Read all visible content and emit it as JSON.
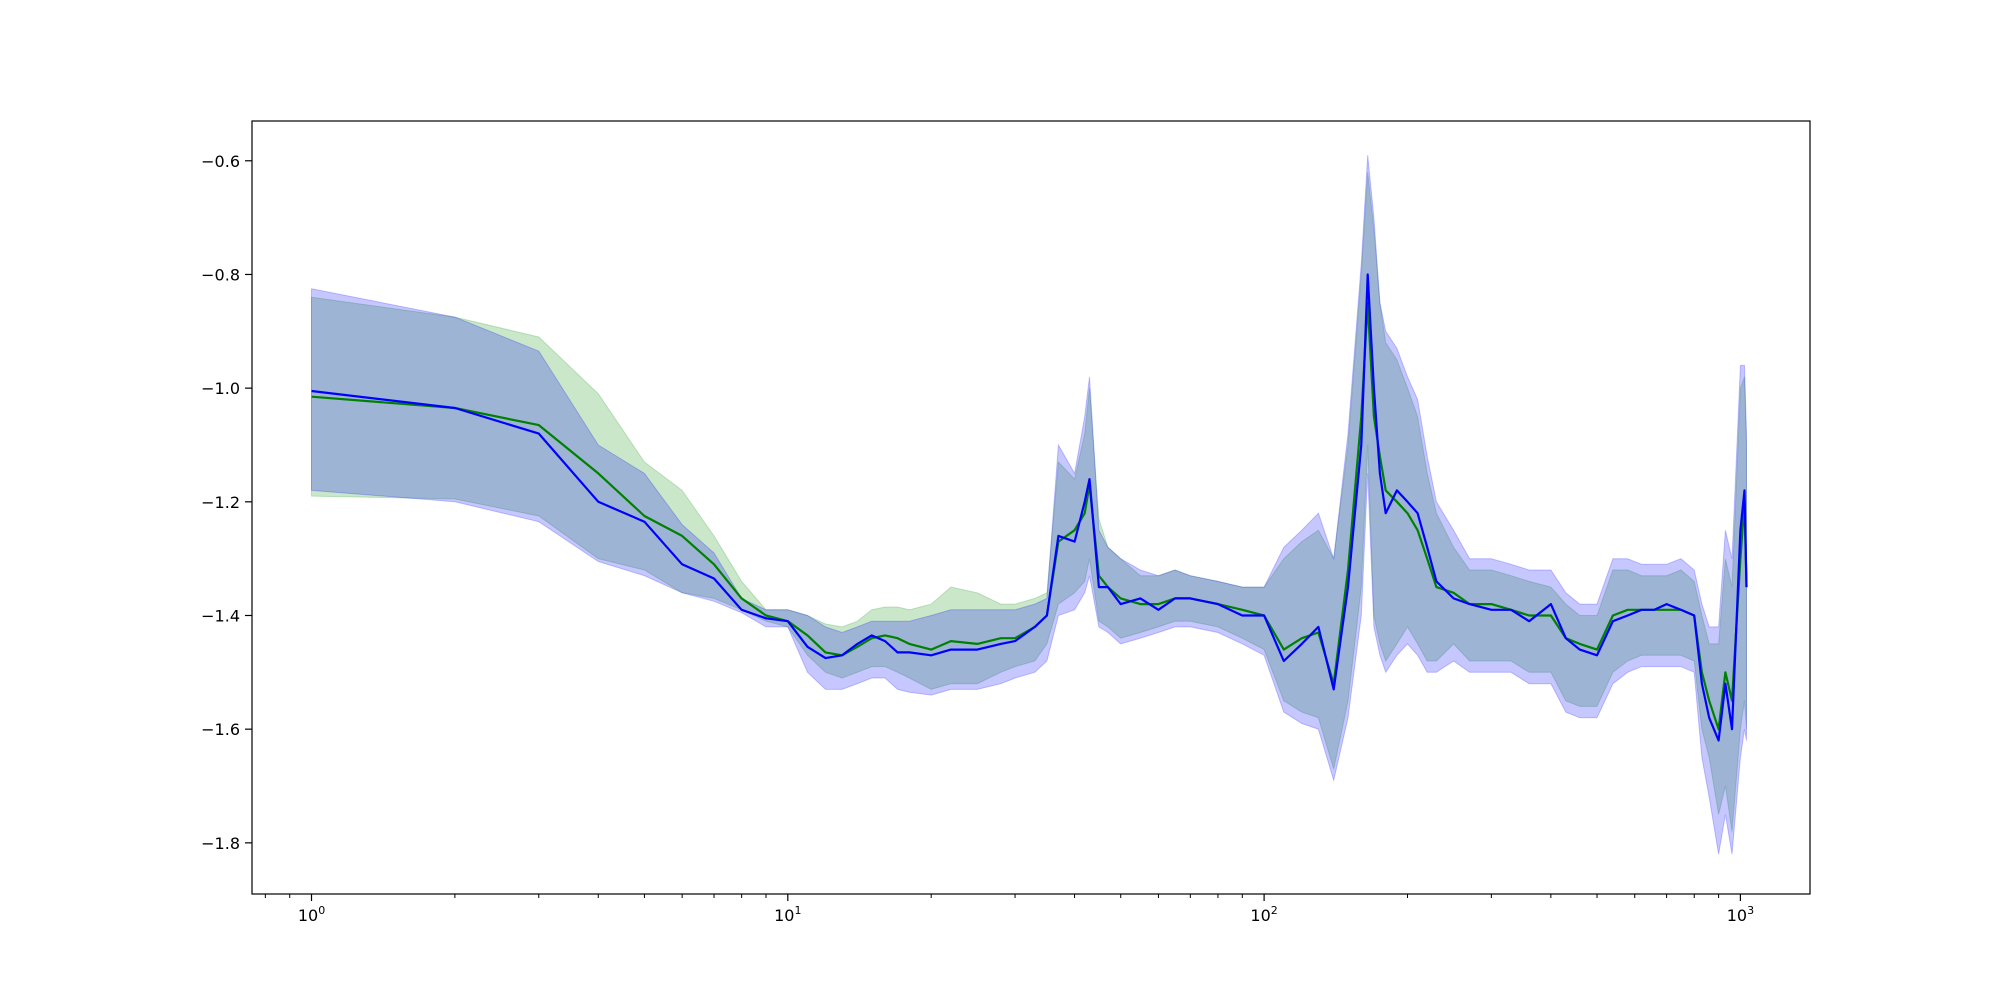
{
  "chart_data": {
    "type": "line",
    "title": "",
    "xlabel": "",
    "ylabel": "",
    "xscale": "log",
    "xlim": [
      0.75,
      1400
    ],
    "ylim": [
      -1.89,
      -0.53
    ],
    "x_ticks": [
      {
        "value": 1,
        "base": "10",
        "exp": "0"
      },
      {
        "value": 10,
        "base": "10",
        "exp": "1"
      },
      {
        "value": 100,
        "base": "10",
        "exp": "2"
      },
      {
        "value": 1000,
        "base": "10",
        "exp": "3"
      }
    ],
    "y_ticks": [
      {
        "value": -0.6,
        "label": "−0.6"
      },
      {
        "value": -0.8,
        "label": "−0.8"
      },
      {
        "value": -1.0,
        "label": "−1.0"
      },
      {
        "value": -1.2,
        "label": "−1.2"
      },
      {
        "value": -1.4,
        "label": "−1.4"
      },
      {
        "value": -1.6,
        "label": "−1.6"
      },
      {
        "value": -1.8,
        "label": "−1.8"
      }
    ],
    "grid": false,
    "legend": "none",
    "series": [
      {
        "color": "#008000",
        "band_color": "#2ca02c",
        "band_opacity": 0.25,
        "x": [
          1,
          2,
          3,
          4,
          5,
          6,
          7,
          8,
          9,
          10,
          11,
          12,
          13,
          14,
          15,
          16,
          17,
          18,
          20,
          22,
          25,
          28,
          30,
          33,
          35,
          37,
          40,
          42,
          43,
          45,
          47,
          50,
          55,
          60,
          65,
          70,
          80,
          90,
          100,
          110,
          120,
          130,
          140,
          150,
          160,
          165,
          170,
          175,
          180,
          190,
          200,
          210,
          220,
          230,
          250,
          270,
          300,
          330,
          360,
          400,
          430,
          460,
          500,
          540,
          580,
          620,
          660,
          700,
          750,
          800,
          830,
          860,
          900,
          930,
          960,
          1000,
          1020,
          1030
        ],
        "values": [
          -1.015,
          -1.035,
          -1.065,
          -1.15,
          -1.225,
          -1.26,
          -1.31,
          -1.37,
          -1.4,
          -1.41,
          -1.435,
          -1.465,
          -1.47,
          -1.455,
          -1.44,
          -1.435,
          -1.44,
          -1.45,
          -1.46,
          -1.445,
          -1.45,
          -1.44,
          -1.44,
          -1.42,
          -1.4,
          -1.27,
          -1.25,
          -1.22,
          -1.17,
          -1.33,
          -1.35,
          -1.37,
          -1.38,
          -1.38,
          -1.37,
          -1.37,
          -1.38,
          -1.39,
          -1.4,
          -1.46,
          -1.44,
          -1.43,
          -1.52,
          -1.32,
          -1.05,
          -0.85,
          -1.05,
          -1.12,
          -1.18,
          -1.2,
          -1.22,
          -1.25,
          -1.3,
          -1.35,
          -1.36,
          -1.38,
          -1.38,
          -1.39,
          -1.4,
          -1.4,
          -1.44,
          -1.45,
          -1.46,
          -1.4,
          -1.39,
          -1.39,
          -1.39,
          -1.39,
          -1.39,
          -1.4,
          -1.5,
          -1.55,
          -1.6,
          -1.5,
          -1.55,
          -1.3,
          -1.2,
          -1.35
        ],
        "lower": [
          -1.19,
          -1.195,
          -1.225,
          -1.3,
          -1.32,
          -1.36,
          -1.37,
          -1.39,
          -1.41,
          -1.42,
          -1.47,
          -1.5,
          -1.51,
          -1.5,
          -1.49,
          -1.49,
          -1.5,
          -1.51,
          -1.53,
          -1.52,
          -1.52,
          -1.5,
          -1.49,
          -1.48,
          -1.45,
          -1.38,
          -1.36,
          -1.34,
          -1.3,
          -1.41,
          -1.42,
          -1.44,
          -1.43,
          -1.42,
          -1.41,
          -1.41,
          -1.42,
          -1.44,
          -1.46,
          -1.55,
          -1.57,
          -1.58,
          -1.67,
          -1.55,
          -1.35,
          -1.1,
          -1.4,
          -1.45,
          -1.48,
          -1.45,
          -1.42,
          -1.45,
          -1.48,
          -1.48,
          -1.45,
          -1.48,
          -1.48,
          -1.48,
          -1.5,
          -1.5,
          -1.55,
          -1.56,
          -1.56,
          -1.5,
          -1.48,
          -1.47,
          -1.47,
          -1.47,
          -1.47,
          -1.48,
          -1.6,
          -1.65,
          -1.75,
          -1.7,
          -1.78,
          -1.6,
          -1.55,
          -1.6
        ],
        "upper": [
          -0.84,
          -0.875,
          -0.91,
          -1.01,
          -1.13,
          -1.18,
          -1.26,
          -1.34,
          -1.39,
          -1.39,
          -1.4,
          -1.415,
          -1.42,
          -1.41,
          -1.39,
          -1.385,
          -1.385,
          -1.39,
          -1.38,
          -1.35,
          -1.36,
          -1.38,
          -1.38,
          -1.37,
          -1.36,
          -1.13,
          -1.16,
          -1.08,
          -1.0,
          -1.23,
          -1.28,
          -1.3,
          -1.33,
          -1.33,
          -1.32,
          -1.33,
          -1.34,
          -1.35,
          -1.35,
          -1.3,
          -1.27,
          -1.25,
          -1.3,
          -1.1,
          -0.8,
          -0.62,
          -0.72,
          -0.85,
          -0.92,
          -0.95,
          -1.0,
          -1.05,
          -1.15,
          -1.22,
          -1.28,
          -1.32,
          -1.32,
          -1.33,
          -1.34,
          -1.35,
          -1.38,
          -1.4,
          -1.4,
          -1.32,
          -1.32,
          -1.33,
          -1.33,
          -1.33,
          -1.32,
          -1.34,
          -1.4,
          -1.45,
          -1.45,
          -1.3,
          -1.35,
          -1.0,
          -0.98,
          -1.1
        ]
      },
      {
        "color": "#0000ff",
        "band_color": "#0000ff",
        "band_opacity": 0.22,
        "x": [
          1,
          2,
          3,
          4,
          5,
          6,
          7,
          8,
          9,
          10,
          11,
          12,
          13,
          14,
          15,
          16,
          17,
          18,
          20,
          22,
          25,
          28,
          30,
          33,
          35,
          37,
          40,
          42,
          43,
          45,
          47,
          50,
          55,
          60,
          65,
          70,
          80,
          90,
          100,
          110,
          120,
          130,
          140,
          150,
          160,
          165,
          170,
          175,
          180,
          190,
          200,
          210,
          220,
          230,
          250,
          270,
          300,
          330,
          360,
          400,
          430,
          460,
          500,
          540,
          580,
          620,
          660,
          700,
          750,
          800,
          830,
          860,
          900,
          930,
          960,
          1000,
          1020,
          1030
        ],
        "values": [
          -1.005,
          -1.035,
          -1.08,
          -1.2,
          -1.235,
          -1.31,
          -1.335,
          -1.39,
          -1.405,
          -1.41,
          -1.455,
          -1.475,
          -1.47,
          -1.45,
          -1.435,
          -1.445,
          -1.465,
          -1.465,
          -1.47,
          -1.46,
          -1.46,
          -1.45,
          -1.445,
          -1.42,
          -1.4,
          -1.26,
          -1.27,
          -1.2,
          -1.16,
          -1.35,
          -1.35,
          -1.38,
          -1.37,
          -1.39,
          -1.37,
          -1.37,
          -1.38,
          -1.4,
          -1.4,
          -1.48,
          -1.45,
          -1.42,
          -1.53,
          -1.35,
          -1.1,
          -0.8,
          -1.0,
          -1.15,
          -1.22,
          -1.18,
          -1.2,
          -1.22,
          -1.28,
          -1.34,
          -1.37,
          -1.38,
          -1.39,
          -1.39,
          -1.41,
          -1.38,
          -1.44,
          -1.46,
          -1.47,
          -1.41,
          -1.4,
          -1.39,
          -1.39,
          -1.38,
          -1.39,
          -1.4,
          -1.52,
          -1.58,
          -1.62,
          -1.52,
          -1.6,
          -1.25,
          -1.18,
          -1.35
        ],
        "lower": [
          -1.18,
          -1.2,
          -1.235,
          -1.305,
          -1.33,
          -1.36,
          -1.375,
          -1.395,
          -1.42,
          -1.42,
          -1.5,
          -1.53,
          -1.53,
          -1.52,
          -1.51,
          -1.51,
          -1.53,
          -1.535,
          -1.54,
          -1.53,
          -1.53,
          -1.52,
          -1.51,
          -1.5,
          -1.48,
          -1.4,
          -1.39,
          -1.36,
          -1.33,
          -1.42,
          -1.43,
          -1.45,
          -1.44,
          -1.43,
          -1.42,
          -1.42,
          -1.43,
          -1.45,
          -1.47,
          -1.57,
          -1.59,
          -1.6,
          -1.69,
          -1.58,
          -1.4,
          -1.15,
          -1.42,
          -1.47,
          -1.5,
          -1.47,
          -1.45,
          -1.47,
          -1.5,
          -1.5,
          -1.48,
          -1.5,
          -1.5,
          -1.5,
          -1.52,
          -1.52,
          -1.57,
          -1.58,
          -1.58,
          -1.52,
          -1.5,
          -1.49,
          -1.49,
          -1.49,
          -1.49,
          -1.5,
          -1.65,
          -1.72,
          -1.82,
          -1.75,
          -1.82,
          -1.65,
          -1.6,
          -1.62
        ],
        "upper": [
          -0.825,
          -0.875,
          -0.935,
          -1.1,
          -1.15,
          -1.24,
          -1.29,
          -1.37,
          -1.39,
          -1.39,
          -1.4,
          -1.42,
          -1.43,
          -1.42,
          -1.41,
          -1.41,
          -1.41,
          -1.41,
          -1.4,
          -1.39,
          -1.39,
          -1.39,
          -1.39,
          -1.38,
          -1.37,
          -1.1,
          -1.15,
          -1.05,
          -0.98,
          -1.25,
          -1.28,
          -1.3,
          -1.32,
          -1.33,
          -1.32,
          -1.33,
          -1.34,
          -1.35,
          -1.35,
          -1.28,
          -1.25,
          -1.22,
          -1.3,
          -1.08,
          -0.78,
          -0.59,
          -0.7,
          -0.85,
          -0.9,
          -0.93,
          -0.98,
          -1.02,
          -1.12,
          -1.2,
          -1.25,
          -1.3,
          -1.3,
          -1.31,
          -1.32,
          -1.32,
          -1.36,
          -1.38,
          -1.38,
          -1.3,
          -1.3,
          -1.31,
          -1.31,
          -1.31,
          -1.3,
          -1.32,
          -1.38,
          -1.42,
          -1.42,
          -1.25,
          -1.3,
          -0.96,
          -0.96,
          -1.08
        ]
      }
    ]
  }
}
